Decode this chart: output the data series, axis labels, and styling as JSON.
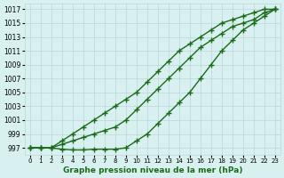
{
  "xlabel": "Graphe pression niveau de la mer (hPa)",
  "x": [
    0,
    1,
    2,
    3,
    4,
    5,
    6,
    7,
    8,
    9,
    10,
    11,
    12,
    13,
    14,
    15,
    16,
    17,
    18,
    19,
    20,
    21,
    22,
    23
  ],
  "line1": [
    997,
    997,
    997,
    998,
    999,
    1000,
    1001,
    1002,
    1003,
    1004,
    1005,
    1006.5,
    1008,
    1009.5,
    1011,
    1012,
    1013,
    1014,
    1015,
    1015.5,
    1016,
    1016.5,
    1017,
    1017
  ],
  "line2": [
    997,
    997,
    997,
    997.5,
    998,
    998.5,
    999,
    999.5,
    1000,
    1001,
    1002.5,
    1004,
    1005.5,
    1007,
    1008.5,
    1010,
    1011.5,
    1012.5,
    1013.5,
    1014.5,
    1015,
    1015.5,
    1016.5,
    1017
  ],
  "line3": [
    997,
    997,
    997,
    996.8,
    996.7,
    996.7,
    996.8,
    996.8,
    996.8,
    997,
    998,
    999,
    1000.5,
    1002,
    1003.5,
    1005,
    1007,
    1009,
    1011,
    1012.5,
    1014,
    1015,
    1016,
    1017
  ],
  "line_color": "#1a6b1a",
  "bg_color": "#d9f0f0",
  "grid_color": "#b8d8d8",
  "ylim": [
    996.0,
    1017.8
  ],
  "yticks": [
    997,
    999,
    1001,
    1003,
    1005,
    1007,
    1009,
    1011,
    1013,
    1015,
    1017
  ],
  "marker": "+",
  "marker_size": 4,
  "linewidth": 1.0
}
